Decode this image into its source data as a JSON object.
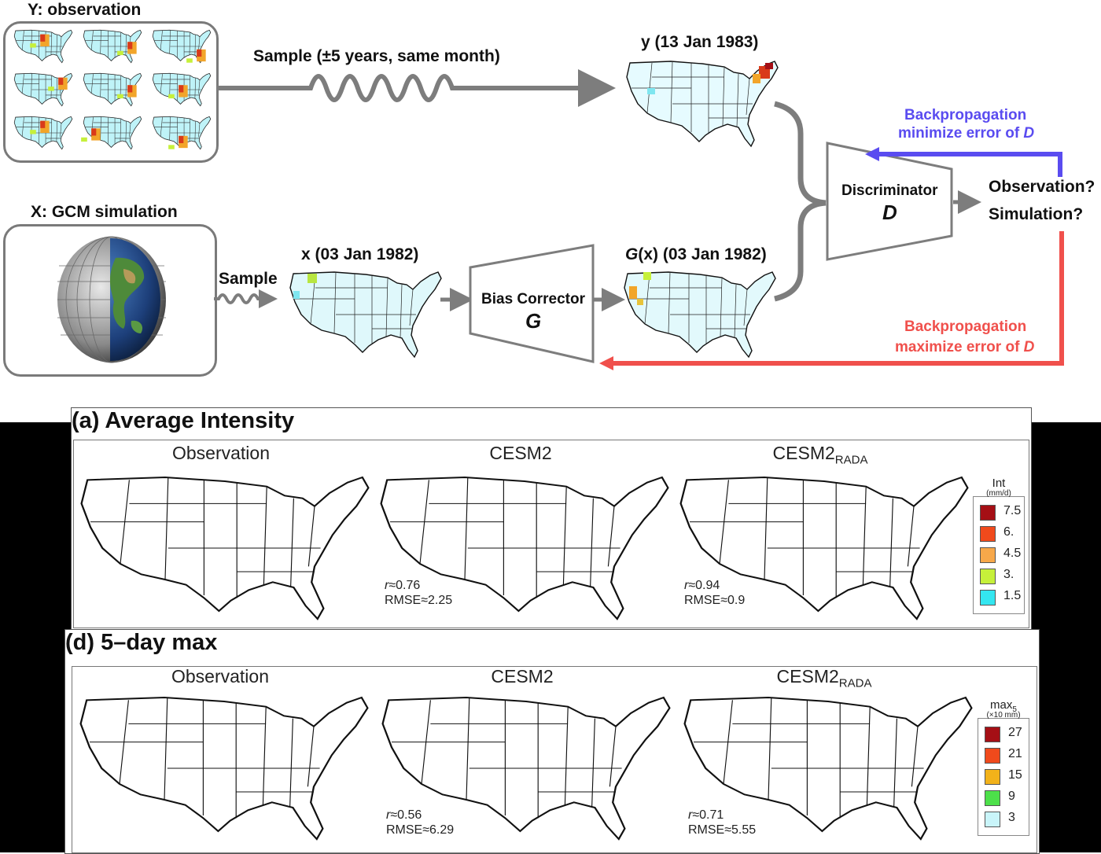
{
  "diagram": {
    "obs_box_label": "Y: observation",
    "gcm_box_label": "X: GCM simulation",
    "sample_long_label": "Sample (±5 years, same month)",
    "sample_short_label": "Sample",
    "y_map_label": "y (13 Jan 1983)",
    "x_map_label": "x (03 Jan 1982)",
    "gx_map_label_italic": "G",
    "gx_map_label_rest": "(x) (03 Jan 1982)",
    "bias_corrector_label": "Bias Corrector",
    "bias_corrector_symbol": "G",
    "discriminator_label": "Discriminator",
    "discriminator_symbol": "D",
    "output_line1": "Observation?",
    "output_line2": "Simulation?",
    "backprop_top_line1": "Backpropagation",
    "backprop_top_line2_prefix": "minimize error of ",
    "backprop_top_line2_symbol": "D",
    "backprop_bottom_line1": "Backpropagation",
    "backprop_bottom_line2_prefix": "maximize error of ",
    "backprop_bottom_line2_symbol": "D",
    "colors": {
      "arrow_gray": "#7d7d7d",
      "backprop_blue": "#5a4cf0",
      "backprop_red": "#f0504c"
    }
  },
  "panels": [
    {
      "title": "(a) Average Intensity",
      "maps": [
        {
          "title": "Observation",
          "title_sub": "",
          "r": "",
          "rmse": ""
        },
        {
          "title": "CESM2",
          "title_sub": "",
          "r": "≈0.76",
          "rmse": "RMSE≈2.25"
        },
        {
          "title": "CESM2",
          "title_sub": "RADA",
          "r": "≈0.94",
          "rmse": "RMSE≈0.9"
        }
      ],
      "legend": {
        "title": "Int",
        "unit": "(mm/d)",
        "entries": [
          {
            "value": "7.5",
            "color": "#a50f15"
          },
          {
            "value": "6.",
            "color": "#f04a1c"
          },
          {
            "value": "4.5",
            "color": "#f7a84a"
          },
          {
            "value": "3.",
            "color": "#c6f03a"
          },
          {
            "value": "1.5",
            "color": "#34e6f0"
          }
        ]
      }
    },
    {
      "title": "(d) 5–day max",
      "maps": [
        {
          "title": "Observation",
          "title_sub": "",
          "r": "",
          "rmse": ""
        },
        {
          "title": "CESM2",
          "title_sub": "",
          "r": "≈0.56",
          "rmse": "RMSE≈6.29"
        },
        {
          "title": "CESM2",
          "title_sub": "RADA",
          "r": "≈0.71",
          "rmse": "RMSE≈5.55"
        }
      ],
      "legend": {
        "title": "max",
        "title_sub": "5",
        "unit": "(×10 mm)",
        "entries": [
          {
            "value": "27",
            "color": "#a50f15"
          },
          {
            "value": "21",
            "color": "#f04a1c"
          },
          {
            "value": "15",
            "color": "#f2b21a"
          },
          {
            "value": "9",
            "color": "#4de04a"
          },
          {
            "value": "3",
            "color": "#c9f5fa"
          }
        ]
      }
    }
  ],
  "stat_r_symbol": "r"
}
